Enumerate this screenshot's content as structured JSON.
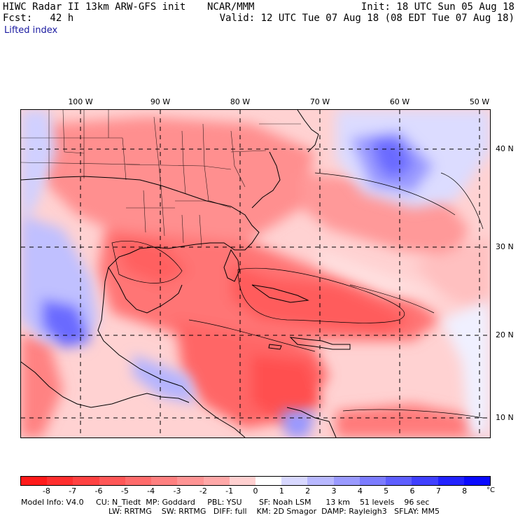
{
  "header": {
    "title": "HIWC Radar II 13km ARW-GFS init",
    "org": "NCAR/MMM",
    "init": "Init: 18 UTC Sun 05 Aug 18",
    "fcst": "Fcst:   42 h",
    "valid": "Valid: 12 UTC Tue 07 Aug 18 (08 EDT Tue 07 Aug 18)",
    "field": "Lifted index"
  },
  "map": {
    "lon_labels": [
      "100 W",
      "90 W",
      "80 W",
      "70 W",
      "60 W",
      "50 W"
    ],
    "lat_labels": [
      "40 N",
      "30 N",
      "20 N",
      "10 N"
    ]
  },
  "colorbar": {
    "ticks": [
      "-8",
      "-7",
      "-6",
      "-5",
      "-4",
      "-3",
      "-2",
      "-1",
      "0",
      "1",
      "2",
      "3",
      "4",
      "5",
      "6",
      "7",
      "8"
    ],
    "unit": "°C",
    "colors": [
      "#ff1a1a",
      "#ff2e2e",
      "#ff4242",
      "#ff5757",
      "#ff6b6b",
      "#ff8080",
      "#ff9494",
      "#ffa8a8",
      "#ffd0d0",
      "#ffffff",
      "#d8d8ff",
      "#b8b8ff",
      "#9a9aff",
      "#7c7cff",
      "#5e5eff",
      "#4040ff",
      "#2222ff",
      "#0a0aff"
    ]
  },
  "footer": {
    "line1": "Model Info: V4.0     CU: N_Tiedt  MP: Goddard     PBL: YSU       SF: Noah LSM      13 km    51 levels    96 sec",
    "line2": "LW: RRTMG    SW: RRTMG   DIFF: full    KM: 2D Smagor  DAMP: Rayleigh3   SFLAY: MM5"
  }
}
